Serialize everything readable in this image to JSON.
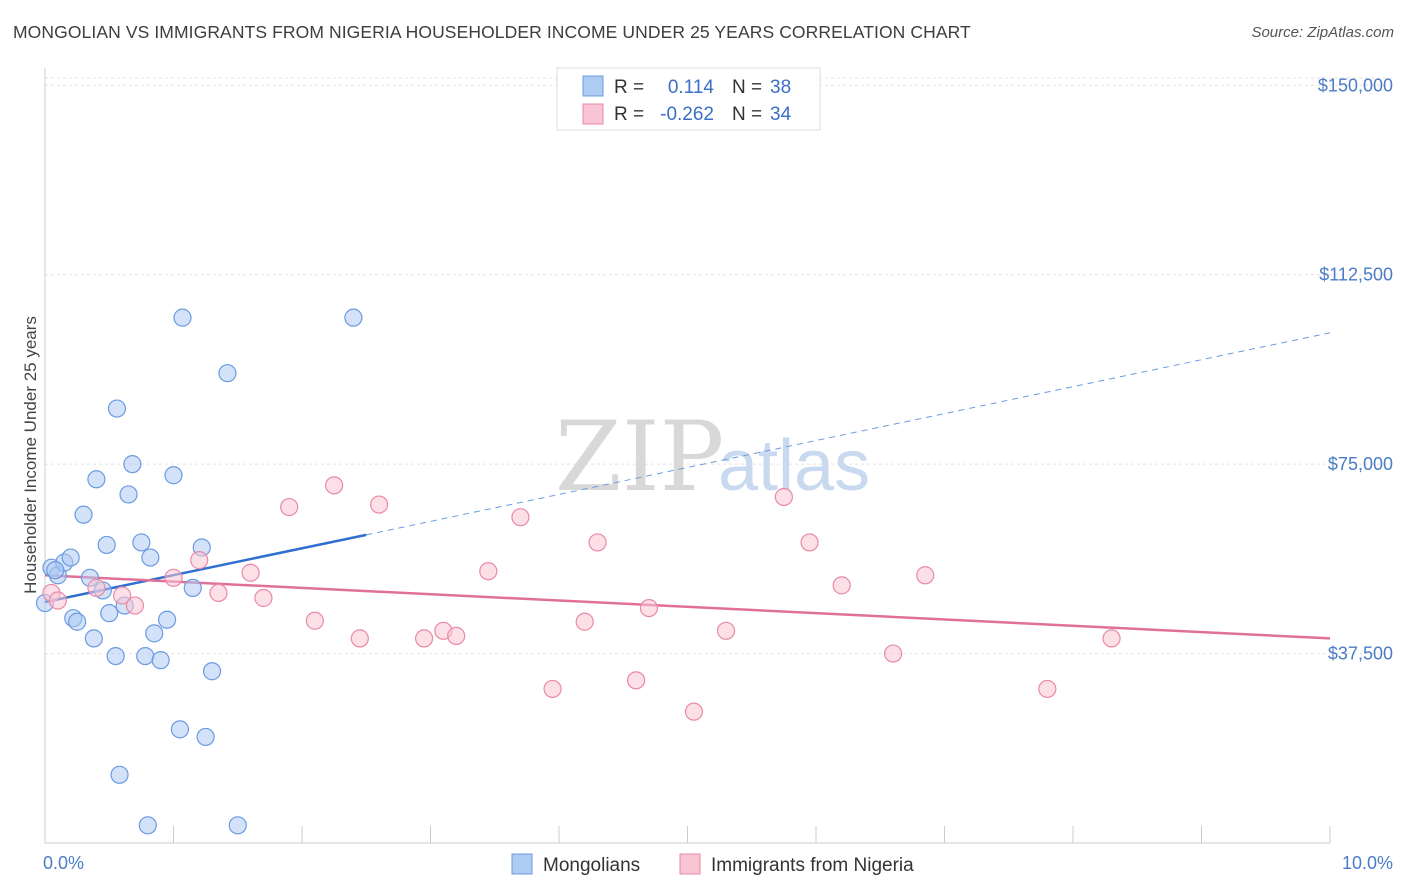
{
  "header": {
    "title": "MONGOLIAN VS IMMIGRANTS FROM NIGERIA HOUSEHOLDER INCOME UNDER 25 YEARS CORRELATION CHART",
    "source": "Source: ZipAtlas.com"
  },
  "watermark": {
    "zip": "ZIP",
    "atlas": "atlas"
  },
  "legend": {
    "rows": [
      {
        "r_label": "R =",
        "r_value": "0.114",
        "n_label": "N =",
        "n_value": "38",
        "color": "#aecbf2",
        "stroke": "#6b9be0"
      },
      {
        "r_label": "R =",
        "r_value": "-0.262",
        "n_label": "N =",
        "n_value": "34",
        "color": "#f9c4d3",
        "stroke": "#e88aa6"
      }
    ]
  },
  "bottom_legend": {
    "items": [
      {
        "label": "Mongolians",
        "color": "#aecbf2",
        "stroke": "#6b9be0"
      },
      {
        "label": "Immigrants from Nigeria",
        "color": "#f9c4d3",
        "stroke": "#e88aa6"
      }
    ]
  },
  "chart_data": {
    "type": "scatter",
    "title": "MONGOLIAN VS IMMIGRANTS FROM NIGERIA HOUSEHOLDER INCOME UNDER 25 YEARS CORRELATION CHART",
    "xlabel": "",
    "ylabel": "Householder Income Under 25 years",
    "xlim": [
      0,
      10
    ],
    "ylim": [
      0,
      155000
    ],
    "x_tick_labels": [
      "0.0%",
      "10.0%"
    ],
    "y_ticks": [
      37500,
      75000,
      112500,
      150000
    ],
    "y_tick_labels": [
      "$37,500",
      "$75,000",
      "$112,500",
      "$150,000"
    ],
    "grid": true,
    "series": [
      {
        "name": "Mongolians",
        "color": "#aecbf2",
        "stroke": "#6b9be0",
        "trend_color": "#2e6fd0",
        "trend": {
          "x0": 0.0,
          "y0": 47700,
          "x_solid_end": 2.5,
          "y_solid_end": 61000,
          "x_dash_end": 10.0,
          "y_dash_end": 101000
        },
        "points": [
          [
            0.0,
            47500
          ],
          [
            0.05,
            54500
          ],
          [
            0.1,
            53000
          ],
          [
            0.15,
            55500
          ],
          [
            0.2,
            56500
          ],
          [
            0.22,
            44500
          ],
          [
            0.25,
            43800
          ],
          [
            0.3,
            65000
          ],
          [
            0.35,
            52500
          ],
          [
            0.38,
            40500
          ],
          [
            0.4,
            72000
          ],
          [
            0.45,
            50000
          ],
          [
            0.48,
            59000
          ],
          [
            0.5,
            45500
          ],
          [
            0.55,
            37000
          ],
          [
            0.56,
            86000
          ],
          [
            0.58,
            13500
          ],
          [
            0.62,
            47000
          ],
          [
            0.65,
            69000
          ],
          [
            0.68,
            75000
          ],
          [
            0.75,
            59500
          ],
          [
            0.78,
            37000
          ],
          [
            0.8,
            3500
          ],
          [
            0.82,
            56500
          ],
          [
            0.85,
            41500
          ],
          [
            0.9,
            36200
          ],
          [
            0.95,
            44200
          ],
          [
            1.0,
            72800
          ],
          [
            1.05,
            22500
          ],
          [
            1.07,
            104000
          ],
          [
            1.15,
            50500
          ],
          [
            1.22,
            58500
          ],
          [
            1.25,
            21000
          ],
          [
            1.3,
            34000
          ],
          [
            1.42,
            93000
          ],
          [
            1.5,
            3500
          ],
          [
            2.4,
            104000
          ],
          [
            0.08,
            54000
          ]
        ]
      },
      {
        "name": "Immigrants from Nigeria",
        "color": "#f9c4d3",
        "stroke": "#e88aa6",
        "trend_color": "#e07098",
        "trend": {
          "x0": 0.0,
          "y0": 53000,
          "x1": 10.0,
          "y1": 40500
        },
        "points": [
          [
            0.05,
            49500
          ],
          [
            0.6,
            49000
          ],
          [
            0.7,
            47000
          ],
          [
            1.0,
            52500
          ],
          [
            1.2,
            56000
          ],
          [
            1.35,
            49500
          ],
          [
            1.6,
            53500
          ],
          [
            1.7,
            48500
          ],
          [
            1.9,
            66500
          ],
          [
            2.1,
            44000
          ],
          [
            2.25,
            70800
          ],
          [
            2.45,
            40500
          ],
          [
            2.6,
            67000
          ],
          [
            2.95,
            40500
          ],
          [
            3.1,
            42000
          ],
          [
            3.2,
            41000
          ],
          [
            3.45,
            53800
          ],
          [
            3.7,
            64500
          ],
          [
            3.95,
            30500
          ],
          [
            4.2,
            43800
          ],
          [
            4.3,
            59500
          ],
          [
            4.6,
            32200
          ],
          [
            4.7,
            46500
          ],
          [
            5.05,
            26000
          ],
          [
            5.3,
            42000
          ],
          [
            5.75,
            68500
          ],
          [
            5.95,
            59500
          ],
          [
            6.2,
            51000
          ],
          [
            6.6,
            37500
          ],
          [
            6.85,
            53000
          ],
          [
            7.8,
            30500
          ],
          [
            8.3,
            40500
          ],
          [
            0.1,
            48000
          ],
          [
            0.4,
            50500
          ]
        ]
      }
    ]
  }
}
